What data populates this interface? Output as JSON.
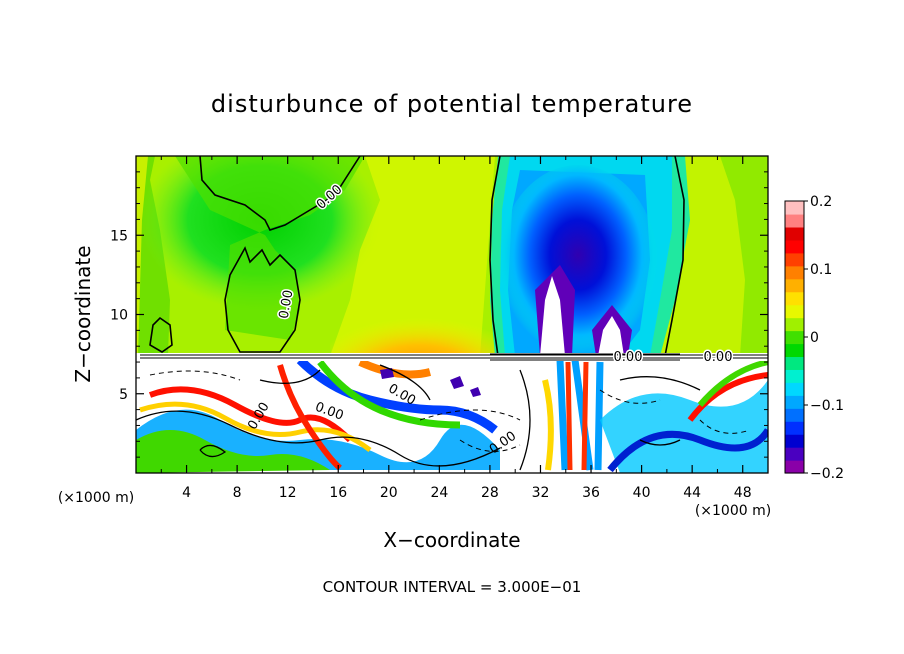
{
  "chart_data": {
    "type": "heatmap",
    "title": "disturbunce of potential temperature",
    "xlabel": "X−coordinate",
    "ylabel": "Z−coordinate",
    "x_unit": "(×1000 m)",
    "y_unit": "(×1000 m)",
    "xlim": [
      0,
      50
    ],
    "ylim": [
      0,
      20
    ],
    "x_ticks": [
      4,
      8,
      12,
      16,
      20,
      24,
      28,
      32,
      36,
      40,
      44,
      48
    ],
    "y_ticks": [
      5,
      10,
      15
    ],
    "colorbar": {
      "range": [
        -0.2,
        0.2
      ],
      "tick_values": [
        0.2,
        0.1,
        0,
        -0.1,
        -0.2
      ],
      "tick_labels": [
        "0.2",
        "0.1",
        "0",
        "−0.1",
        "−0.2"
      ],
      "colors": [
        "#8a00a8",
        "#4a00c0",
        "#0000d0",
        "#0030ff",
        "#0070ff",
        "#00a8ff",
        "#00d8ff",
        "#00f0d0",
        "#00e880",
        "#00d800",
        "#40e000",
        "#a0f000",
        "#e8f800",
        "#ffe000",
        "#ffb000",
        "#ff8000",
        "#ff4000",
        "#ff0000",
        "#e00000",
        "#ff8080",
        "#ffc0c0"
      ]
    },
    "contour_labels": [
      "0.00"
    ],
    "contour_interval_text": "CONTOUR INTERVAL = 3.000E−01",
    "field_regions": [
      {
        "x": [
          0,
          28
        ],
        "z": [
          7.3,
          20
        ],
        "value": 0.02
      },
      {
        "x": [
          5,
          18
        ],
        "z": [
          8,
          18.5
        ],
        "value": 0.0
      },
      {
        "x": [
          14,
          28
        ],
        "z": [
          7.3,
          12
        ],
        "value": 0.08
      },
      {
        "x": [
          28,
          43
        ],
        "z": [
          7.3,
          20
        ],
        "value": -0.1
      },
      {
        "x": [
          30,
          38
        ],
        "z": [
          9,
          17
        ],
        "value": -0.18
      },
      {
        "x": [
          31,
          33
        ],
        "z": [
          7.5,
          12
        ],
        "value": -0.25
      },
      {
        "x": [
          43,
          50
        ],
        "z": [
          7.3,
          20
        ],
        "value": 0.05
      },
      {
        "x": [
          0,
          50
        ],
        "z": [
          0,
          7.3
        ],
        "value": 0.0
      }
    ]
  }
}
